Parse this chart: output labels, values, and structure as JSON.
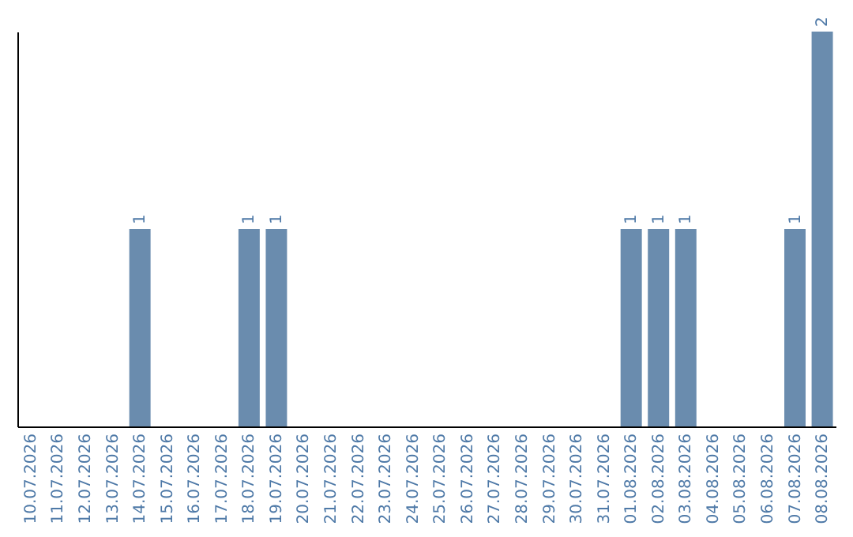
{
  "chart_data": {
    "type": "bar",
    "categories": [
      "10.07.2026",
      "11.07.2026",
      "12.07.2026",
      "13.07.2026",
      "14.07.2026",
      "15.07.2026",
      "16.07.2026",
      "17.07.2026",
      "18.07.2026",
      "19.07.2026",
      "20.07.2026",
      "21.07.2026",
      "22.07.2026",
      "23.07.2026",
      "24.07.2026",
      "25.07.2026",
      "26.07.2026",
      "27.07.2026",
      "28.07.2026",
      "29.07.2026",
      "30.07.2026",
      "31.07.2026",
      "01.08.2026",
      "02.08.2026",
      "03.08.2026",
      "04.08.2026",
      "05.08.2026",
      "06.08.2026",
      "07.08.2026",
      "08.08.2026"
    ],
    "values": [
      0,
      0,
      0,
      0,
      1,
      0,
      0,
      0,
      1,
      1,
      0,
      0,
      0,
      0,
      0,
      0,
      0,
      0,
      0,
      0,
      0,
      0,
      1,
      1,
      1,
      0,
      0,
      0,
      1,
      2
    ],
    "value_labels": [
      null,
      null,
      null,
      null,
      "1",
      null,
      null,
      null,
      "1",
      "1",
      null,
      null,
      null,
      null,
      null,
      null,
      null,
      null,
      null,
      null,
      null,
      null,
      "1",
      "1",
      "1",
      null,
      null,
      null,
      "1",
      "2"
    ],
    "color": "#6a8cae",
    "grid": false,
    "tick_labels": "x"
  }
}
